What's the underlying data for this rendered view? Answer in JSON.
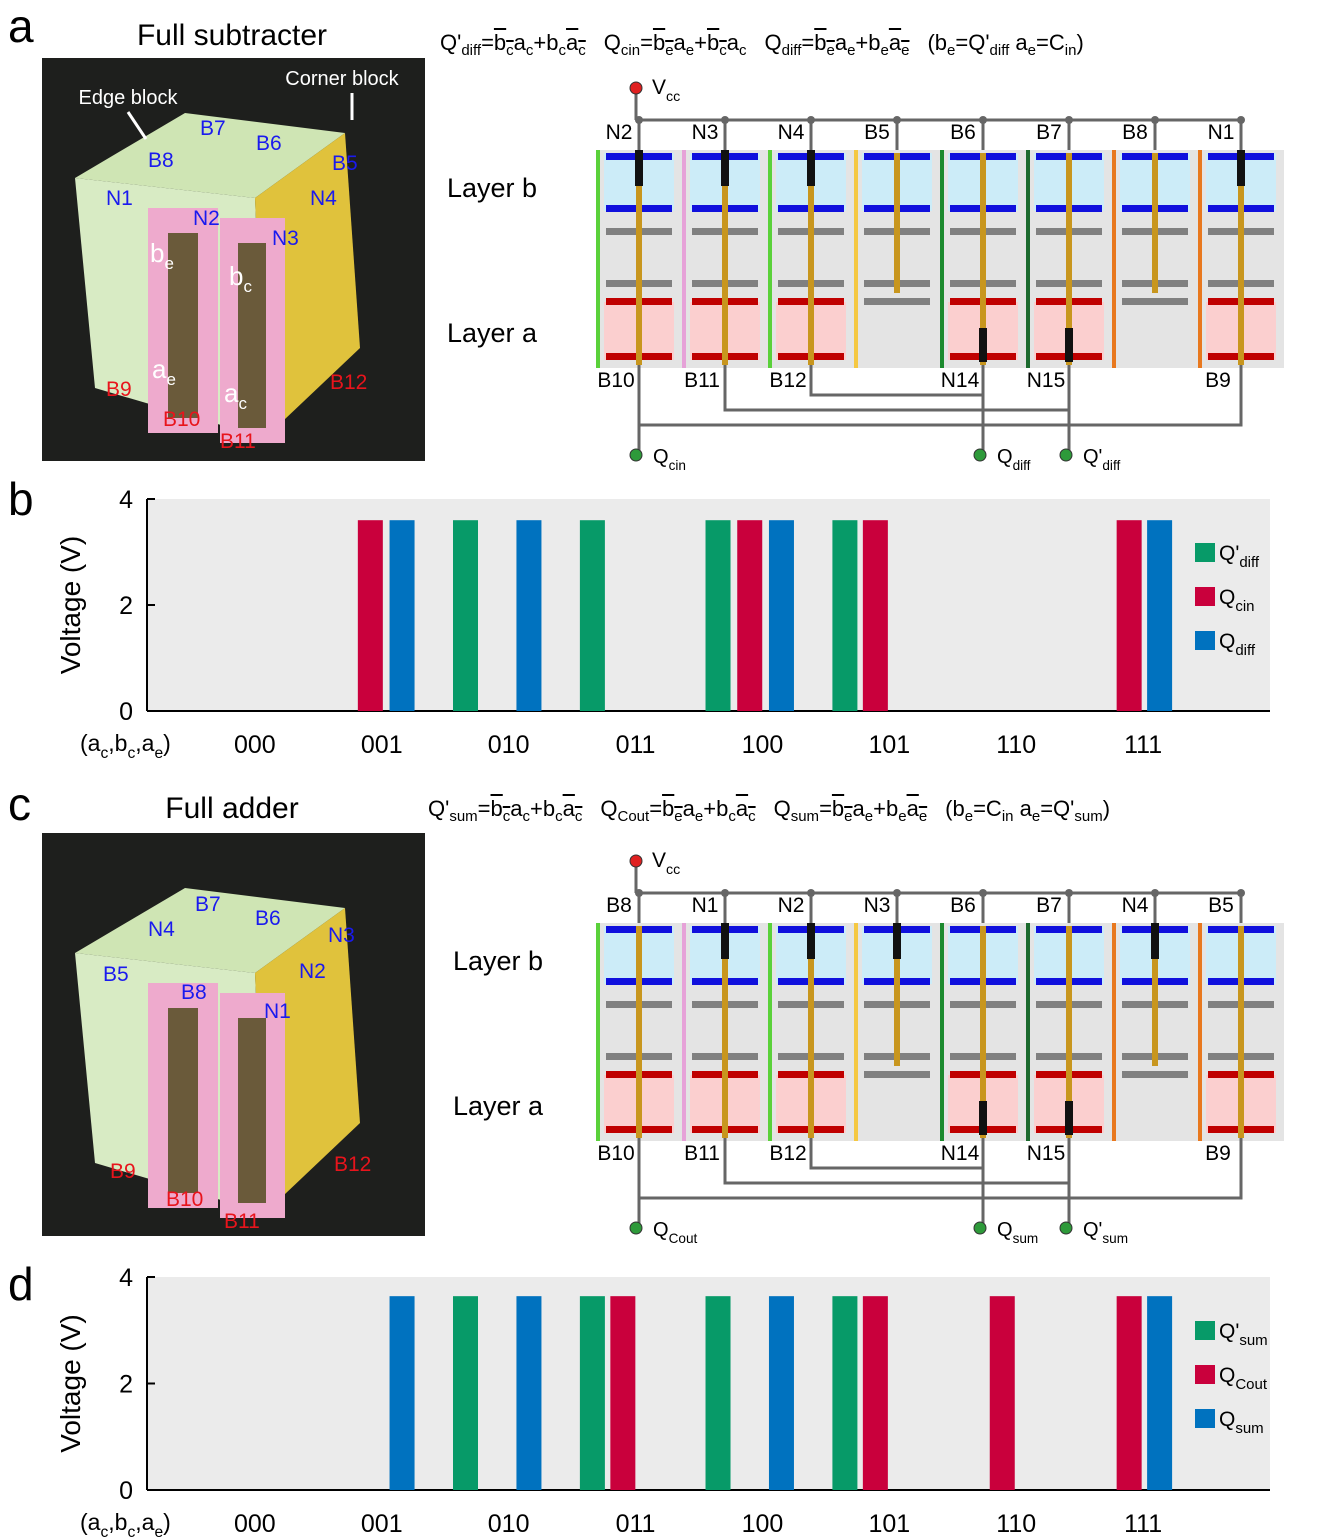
{
  "panel_letters": [
    "a",
    "b",
    "c",
    "d"
  ],
  "panels": [
    {
      "photo": {
        "title": "Full subtracter",
        "callouts": [
          "Edge block",
          "Corner block"
        ],
        "labels": [
          {
            "t": "B7",
            "color": "#1a1aee"
          },
          {
            "t": "B6",
            "color": "#1a1aee"
          },
          {
            "t": "B8",
            "color": "#1a1aee"
          },
          {
            "t": "B5",
            "color": "#1a1aee"
          },
          {
            "t": "N1",
            "color": "#1a1aee"
          },
          {
            "t": "N2",
            "color": "#1a1aee"
          },
          {
            "t": "N4",
            "color": "#1a1aee"
          },
          {
            "t": "N3",
            "color": "#1a1aee"
          },
          {
            "t": "b",
            "s": "e",
            "color": "#ffffff"
          },
          {
            "t": "b",
            "s": "c",
            "color": "#ffffff"
          },
          {
            "t": "a",
            "s": "e",
            "color": "#ffffff"
          },
          {
            "t": "a",
            "s": "c",
            "color": "#ffffff"
          },
          {
            "t": "B9",
            "color": "#e8141c"
          },
          {
            "t": "B10",
            "color": "#e8141c"
          },
          {
            "t": "B11",
            "color": "#e8141c"
          },
          {
            "t": "B12",
            "color": "#e8141c"
          }
        ]
      },
      "equations": [
        [
          {
            "t": "Q'",
            "s": "diff"
          },
          {
            "t": "="
          },
          {
            "t": "b",
            "s": "c",
            "o": true
          },
          {
            "t": "a",
            "s": "c"
          },
          {
            "t": "+"
          },
          {
            "t": "b",
            "s": "c"
          },
          {
            "t": "a",
            "s": "c",
            "o": true
          }
        ],
        [
          {
            "t": "Q",
            "s": "cin"
          },
          {
            "t": "="
          },
          {
            "t": "b",
            "s": "e",
            "o": true
          },
          {
            "t": "a",
            "s": "e"
          },
          {
            "t": "+"
          },
          {
            "t": "b",
            "s": "c",
            "o": true
          },
          {
            "t": "a",
            "s": "c"
          }
        ],
        [
          {
            "t": "Q",
            "s": "diff"
          },
          {
            "t": "="
          },
          {
            "t": "b",
            "s": "e",
            "o": true
          },
          {
            "t": "a",
            "s": "e"
          },
          {
            "t": "+"
          },
          {
            "t": "b",
            "s": "e"
          },
          {
            "t": "a",
            "s": "e",
            "o": true
          }
        ],
        [
          {
            "t": "(b",
            "s": "e"
          },
          {
            "t": "=Q'",
            "s": "diff"
          },
          {
            "t": " a",
            "s": "e"
          },
          {
            "t": "=C",
            "s": "in"
          },
          {
            "t": ")"
          }
        ]
      ],
      "circuit": {
        "vcc": [
          {
            "t": "V",
            "s": "cc"
          }
        ],
        "layers": [
          "Layer b",
          "Layer a"
        ],
        "top": [
          "N2",
          "N3",
          "N4",
          "B5",
          "B6",
          "B7",
          "B8",
          "N1"
        ],
        "bottom": [
          "B10",
          "B11",
          "B12",
          null,
          "N14",
          "N15",
          null,
          "B9"
        ],
        "outputs": [
          [
            {
              "t": "Q",
              "s": "cin"
            }
          ],
          [
            {
              "t": "Q",
              "s": "diff"
            }
          ],
          [
            {
              "t": "Q'",
              "s": "diff"
            }
          ]
        ]
      }
    },
    {
      "photo": {
        "title": "Full adder",
        "callouts": [],
        "labels": [
          {
            "t": "B7",
            "color": "#1a1aee"
          },
          {
            "t": "B6",
            "color": "#1a1aee"
          },
          {
            "t": "N4",
            "color": "#1a1aee"
          },
          {
            "t": "N3",
            "color": "#1a1aee"
          },
          {
            "t": "B5",
            "color": "#1a1aee"
          },
          {
            "t": "N2",
            "color": "#1a1aee"
          },
          {
            "t": "B8",
            "color": "#1a1aee"
          },
          {
            "t": "N1",
            "color": "#1a1aee"
          },
          {
            "t": "B9",
            "color": "#e8141c"
          },
          {
            "t": "B10",
            "color": "#e8141c"
          },
          {
            "t": "B11",
            "color": "#e8141c"
          },
          {
            "t": "B12",
            "color": "#e8141c"
          }
        ]
      },
      "equations": [
        [
          {
            "t": "Q'",
            "s": "sum"
          },
          {
            "t": "="
          },
          {
            "t": "b",
            "s": "c",
            "o": true
          },
          {
            "t": "a",
            "s": "c"
          },
          {
            "t": "+"
          },
          {
            "t": "b",
            "s": "c"
          },
          {
            "t": "a",
            "s": "c",
            "o": true
          }
        ],
        [
          {
            "t": "Q",
            "s": "Cout"
          },
          {
            "t": "="
          },
          {
            "t": "b",
            "s": "e",
            "o": true
          },
          {
            "t": "a",
            "s": "e"
          },
          {
            "t": "+"
          },
          {
            "t": "b",
            "s": "c"
          },
          {
            "t": "a",
            "s": "c",
            "o": true
          }
        ],
        [
          {
            "t": "Q",
            "s": "sum"
          },
          {
            "t": "="
          },
          {
            "t": "b",
            "s": "e",
            "o": true
          },
          {
            "t": "a",
            "s": "e"
          },
          {
            "t": "+"
          },
          {
            "t": "b",
            "s": "e"
          },
          {
            "t": "a",
            "s": "e",
            "o": true
          }
        ],
        [
          {
            "t": "(b",
            "s": "e"
          },
          {
            "t": "=C",
            "s": "in"
          },
          {
            "t": " a",
            "s": "e"
          },
          {
            "t": "=Q'",
            "s": "sum"
          },
          {
            "t": ")"
          }
        ]
      ],
      "circuit": {
        "vcc": [
          {
            "t": "V",
            "s": "cc"
          }
        ],
        "layers": [
          "Layer b",
          "Layer a"
        ],
        "top": [
          "B8",
          "N1",
          "N2",
          "N3",
          "B6",
          "B7",
          "N4",
          "B5"
        ],
        "bottom": [
          "B10",
          "B11",
          "B12",
          null,
          "N14",
          "N15",
          null,
          "B9"
        ],
        "outputs": [
          [
            {
              "t": "Q",
              "s": "Cout"
            }
          ],
          [
            {
              "t": "Q",
              "s": "sum"
            }
          ],
          [
            {
              "t": "Q'",
              "s": "sum"
            }
          ]
        ]
      }
    }
  ],
  "chart_data": [
    {
      "type": "bar",
      "ylabel": "Voltage (V)",
      "xlabel": [
        {
          "t": "(a",
          "s": "c"
        },
        {
          "t": ",b",
          "s": "c"
        },
        {
          "t": ",a",
          "s": "e"
        },
        {
          "t": ")"
        }
      ],
      "xlim": [
        0.15,
        9.0
      ],
      "ylim": [
        0,
        4
      ],
      "yticks": [
        0,
        2,
        4
      ],
      "xticks": [
        {
          "value": 1,
          "label": "000"
        },
        {
          "value": 2,
          "label": "001"
        },
        {
          "value": 3,
          "label": "010"
        },
        {
          "value": 4,
          "label": "011"
        },
        {
          "value": 5,
          "label": "100"
        },
        {
          "value": 6,
          "label": "101"
        },
        {
          "value": 7,
          "label": "110"
        },
        {
          "value": 8,
          "label": "111"
        }
      ],
      "legend": "upper right",
      "series": [
        {
          "name": "Q'",
          "name_sub": "diff",
          "color": "#079a68",
          "x": [
            2.66,
            3.66,
            4.65,
            5.65
          ],
          "values": [
            3.6,
            3.6,
            3.6,
            3.6
          ]
        },
        {
          "name": "Q",
          "name_sub": "cin",
          "color": "#c9003c",
          "x": [
            1.91,
            4.9,
            5.89,
            7.89
          ],
          "values": [
            3.6,
            3.6,
            3.6,
            3.6
          ]
        },
        {
          "name": "Q",
          "name_sub": "diff",
          "color": "#0072bf",
          "x": [
            2.16,
            3.16,
            5.15,
            8.13
          ],
          "values": [
            3.6,
            3.6,
            3.6,
            3.6
          ]
        }
      ]
    },
    {
      "type": "bar",
      "ylabel": "Voltage (V)",
      "xlabel": [
        {
          "t": "(a",
          "s": "c"
        },
        {
          "t": ",b",
          "s": "c"
        },
        {
          "t": ",a",
          "s": "e"
        },
        {
          "t": ")"
        }
      ],
      "xlim": [
        0.15,
        9.0
      ],
      "ylim": [
        0,
        4
      ],
      "yticks": [
        0,
        2,
        4
      ],
      "xticks": [
        {
          "value": 1,
          "label": "000"
        },
        {
          "value": 2,
          "label": "001"
        },
        {
          "value": 3,
          "label": "010"
        },
        {
          "value": 4,
          "label": "011"
        },
        {
          "value": 5,
          "label": "100"
        },
        {
          "value": 6,
          "label": "101"
        },
        {
          "value": 7,
          "label": "110"
        },
        {
          "value": 8,
          "label": "111"
        }
      ],
      "legend": "upper right",
      "series": [
        {
          "name": "Q'",
          "name_sub": "sum",
          "color": "#079a68",
          "x": [
            2.66,
            3.66,
            4.65,
            5.65
          ],
          "values": [
            3.64,
            3.64,
            3.64,
            3.64
          ]
        },
        {
          "name": "Q",
          "name_sub": "Cout",
          "color": "#c9003c",
          "x": [
            3.9,
            5.89,
            6.89,
            7.89
          ],
          "values": [
            3.64,
            3.64,
            3.64,
            3.64
          ]
        },
        {
          "name": "Q",
          "name_sub": "sum",
          "color": "#0072bf",
          "x": [
            2.16,
            3.16,
            5.15,
            8.13
          ],
          "values": [
            3.64,
            3.64,
            3.64,
            3.64
          ]
        }
      ]
    }
  ]
}
